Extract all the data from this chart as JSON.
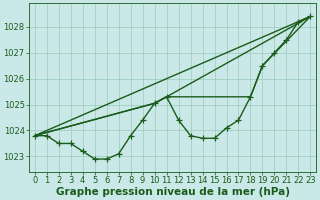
{
  "xlabel": "Graphe pression niveau de la mer (hPa)",
  "bg_color": "#cbe8e8",
  "grid_color": "#99ccbb",
  "line_color": "#1a5c1a",
  "text_color": "#1a5c1a",
  "xlim": [
    -0.5,
    23.5
  ],
  "ylim": [
    1022.4,
    1028.9
  ],
  "yticks": [
    1023,
    1024,
    1025,
    1026,
    1027,
    1028
  ],
  "xticks": [
    0,
    1,
    2,
    3,
    4,
    5,
    6,
    7,
    8,
    9,
    10,
    11,
    12,
    13,
    14,
    15,
    16,
    17,
    18,
    19,
    20,
    21,
    22,
    23
  ],
  "line1_x": [
    0,
    1,
    2,
    3,
    4,
    5,
    6,
    7,
    8,
    9,
    10,
    11,
    12,
    13,
    14,
    15,
    16,
    17,
    18,
    19,
    20,
    21,
    22,
    23
  ],
  "line1_y": [
    1023.8,
    1023.8,
    1023.5,
    1023.5,
    1023.2,
    1022.9,
    1022.9,
    1023.1,
    1023.8,
    1024.4,
    1025.05,
    1025.3,
    1024.4,
    1023.8,
    1023.7,
    1023.7,
    1024.1,
    1024.4,
    1025.3,
    1026.5,
    1027.0,
    1027.5,
    1028.2,
    1028.4
  ],
  "line2_x": [
    0,
    23
  ],
  "line2_y": [
    1023.8,
    1028.4
  ],
  "line3_x": [
    0,
    10,
    11,
    23
  ],
  "line3_y": [
    1023.8,
    1025.05,
    1025.3,
    1028.4
  ],
  "line4_x": [
    0,
    10,
    11,
    18,
    19,
    23
  ],
  "line4_y": [
    1023.8,
    1025.05,
    1025.3,
    1025.3,
    1026.5,
    1028.4
  ],
  "marker_size": 4,
  "line_width": 1.0,
  "xlabel_fontsize": 7.5,
  "tick_fontsize": 6.0
}
